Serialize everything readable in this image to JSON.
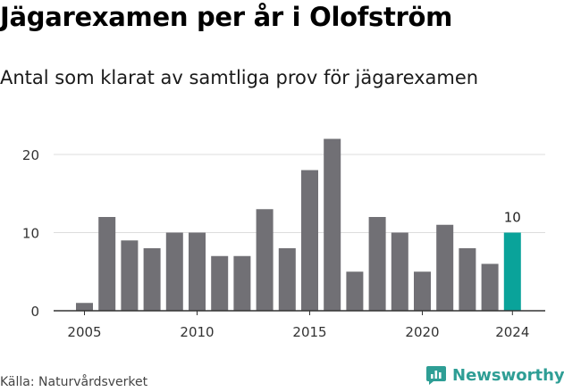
{
  "title": "Jägarexamen per år i Olofström",
  "subtitle": "Antal som klarat av samtliga prov för jägarexamen",
  "source": "Källa: Naturvårdsverket",
  "brand": {
    "name": "Newsworthy",
    "icon": "newsworthy-chart-logo-icon",
    "color": "#2e9e95"
  },
  "colors": {
    "bar": "#717075",
    "highlight": "#0aa39a",
    "grid": "#dddddd",
    "axis": "#333333"
  },
  "chart_data": {
    "type": "bar",
    "x": [
      2005,
      2006,
      2007,
      2008,
      2009,
      2010,
      2011,
      2012,
      2013,
      2014,
      2015,
      2016,
      2017,
      2018,
      2019,
      2020,
      2021,
      2022,
      2023,
      2024
    ],
    "values": [
      1,
      12,
      9,
      8,
      10,
      10,
      7,
      7,
      13,
      8,
      18,
      22,
      5,
      12,
      10,
      5,
      11,
      8,
      6,
      10
    ],
    "x_tick_labels": [
      "2005",
      "2010",
      "2015",
      "2020",
      "2024"
    ],
    "y_ticks": [
      0,
      10,
      20
    ],
    "ylim": [
      0,
      24
    ],
    "highlight": {
      "x": 2024,
      "label": "10"
    },
    "grid": true
  }
}
